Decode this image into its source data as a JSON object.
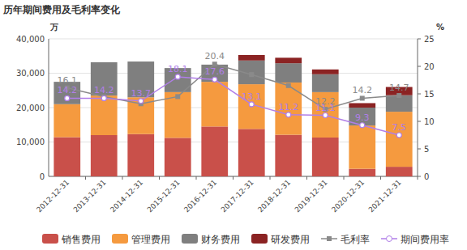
{
  "chart_data": {
    "type": "bar",
    "stacked": true,
    "title": "历年期间费用及毛利率变化",
    "y_label": "万",
    "y2_label": "%",
    "categories": [
      "2012-12-31",
      "2013-12-31",
      "2014-12-31",
      "2015-12-31",
      "2016-12-31",
      "2017-12-31",
      "2018-12-31",
      "2019-12-31",
      "2020-12-31",
      "2021-12-31"
    ],
    "ylim": [
      0,
      40000
    ],
    "yticks": [
      0,
      {
        "value": 10000,
        "label": "10,000"
      },
      {
        "value": 20000,
        "label": "20,000"
      },
      {
        "value": 30000,
        "label": "30,000"
      },
      {
        "value": 40000,
        "label": "40,000"
      }
    ],
    "y2lim": [
      0,
      25
    ],
    "y2ticks": [
      0,
      5,
      10,
      15,
      20,
      25
    ],
    "grid": true,
    "legend": "bottom",
    "data_labels": true,
    "series": [
      {
        "name": "销售费用",
        "type": "bar",
        "color": "#c9504a",
        "values": [
          11400,
          12000,
          12300,
          11200,
          14500,
          13800,
          12100,
          11300,
          2200,
          2800
        ]
      },
      {
        "name": "管理费用",
        "type": "bar",
        "color": "#f59a3f",
        "values": [
          9600,
          11500,
          10700,
          13300,
          13000,
          13000,
          15200,
          13200,
          12600,
          16000
        ]
      },
      {
        "name": "财务费用",
        "type": "bar",
        "color": "#7f7f7f",
        "values": [
          6500,
          9700,
          10400,
          7000,
          5000,
          6900,
          5600,
          5200,
          5200,
          4800
        ]
      },
      {
        "name": "研发费用",
        "type": "bar",
        "color": "#8b2323",
        "values": [
          0,
          0,
          0,
          0,
          0,
          1600,
          1600,
          1400,
          1300,
          2400
        ]
      },
      {
        "name": "毛利率",
        "type": "line",
        "axis": "y2",
        "color": "#8a8a8a",
        "marker": "square",
        "values": [
          16.1,
          14.5,
          13.2,
          14.5,
          20.4,
          18.5,
          16.5,
          12.2,
          14.2,
          14.7
        ],
        "value_labels": [
          "16.1",
          null,
          null,
          null,
          "20.4",
          null,
          null,
          "12.2",
          "14.2",
          "14.7"
        ]
      },
      {
        "name": "期间费用率",
        "type": "line",
        "axis": "y2",
        "color": "#b07ee8",
        "marker": "circle",
        "values": [
          14.2,
          14.2,
          13.7,
          18.1,
          17.6,
          13.1,
          11.2,
          11.1,
          9.3,
          7.5
        ]
      }
    ]
  }
}
